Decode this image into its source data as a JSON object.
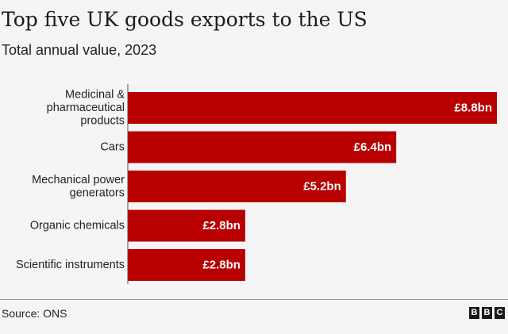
{
  "chart_data": {
    "type": "bar",
    "orientation": "horizontal",
    "title": "Top five UK goods exports to the US",
    "subtitle": "Total annual value, 2023",
    "categories": [
      [
        "Medicinal &",
        "pharmaceutical",
        "products"
      ],
      [
        "Cars"
      ],
      [
        "Mechanical power",
        "generators"
      ],
      [
        "Organic chemicals"
      ],
      [
        "Scientific instruments"
      ]
    ],
    "values": [
      8.8,
      6.4,
      5.2,
      2.8,
      2.8
    ],
    "value_labels": [
      "£8.8bn",
      "£6.4bn",
      "£5.2bn",
      "£2.8bn",
      "£2.8bn"
    ],
    "xlim": [
      0,
      8.8
    ],
    "bar_color": "#b80000",
    "grid": false,
    "legend": "none"
  },
  "footer": {
    "source": "Source: ONS",
    "logo_letters": [
      "B",
      "B",
      "C"
    ]
  },
  "colors": {
    "background": "#f5f5f5",
    "bar": "#b80000",
    "text": "#222222"
  }
}
